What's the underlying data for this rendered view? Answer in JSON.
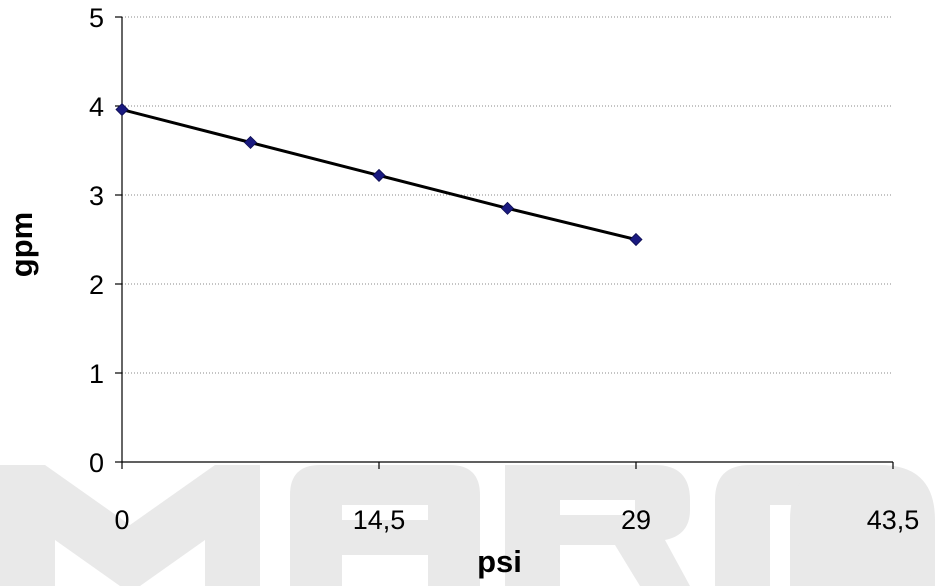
{
  "chart_data": {
    "type": "line",
    "title": "",
    "xlabel": "psi",
    "ylabel": "gpm",
    "xlim": [
      0,
      43.5
    ],
    "ylim": [
      0,
      5
    ],
    "x_ticks": [
      {
        "value": 0,
        "label": "0"
      },
      {
        "value": 14.5,
        "label": "14,5"
      },
      {
        "value": 29,
        "label": "29"
      },
      {
        "value": 43.5,
        "label": "43,5"
      }
    ],
    "y_ticks": [
      {
        "value": 0,
        "label": "0"
      },
      {
        "value": 1,
        "label": "1"
      },
      {
        "value": 2,
        "label": "2"
      },
      {
        "value": 3,
        "label": "3"
      },
      {
        "value": 4,
        "label": "4"
      },
      {
        "value": 5,
        "label": "5"
      }
    ],
    "grid": {
      "horizontal": true,
      "style": "dotted"
    },
    "legend": "none",
    "series": [
      {
        "x": [
          0,
          7.25,
          14.5,
          21.75,
          29
        ],
        "y": [
          3.96,
          3.59,
          3.22,
          2.85,
          2.5
        ],
        "marker": "diamond",
        "marker_color": "#1a1a80",
        "line_color": "#000000"
      }
    ]
  },
  "watermark": {
    "text": "MARCO",
    "registered_mark": "®",
    "color": "#e9e9e9"
  }
}
